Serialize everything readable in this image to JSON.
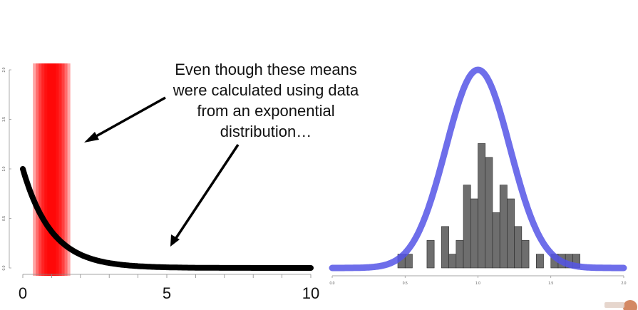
{
  "caption": {
    "lines": [
      "Even though these means",
      "were calculated using data",
      "from an exponential",
      "distribution…"
    ]
  },
  "chart_data": [
    {
      "type": "line",
      "title": "",
      "xlabel": "",
      "ylabel": "",
      "xlim": [
        0,
        10
      ],
      "ylim": [
        0,
        2.0
      ],
      "x_ticks": [
        "0",
        "5",
        "10"
      ],
      "y_ticks": [
        "0.0",
        "0.5",
        "1.0",
        "1.5",
        "2.0"
      ],
      "curve": {
        "function": "exponential density, rate 1",
        "x_range": [
          0,
          10
        ],
        "color": "#000000"
      },
      "highlight_bands": [
        {
          "from": 0.35,
          "to": 1.65,
          "opacity": 0.35
        },
        {
          "from": 0.45,
          "to": 1.55,
          "opacity": 0.35
        },
        {
          "from": 0.55,
          "to": 1.45,
          "opacity": 0.4
        },
        {
          "from": 0.65,
          "to": 1.35,
          "opacity": 0.45
        },
        {
          "from": 0.75,
          "to": 1.25,
          "opacity": 0.5
        },
        {
          "from": 0.85,
          "to": 1.15,
          "opacity": 0.5
        }
      ],
      "highlight_color": "#ff0000"
    },
    {
      "type": "bar",
      "title": "",
      "xlabel": "",
      "ylabel": "",
      "xlim": [
        0.0,
        2.0
      ],
      "x_ticks": [
        "0.0",
        "0.5",
        "1.0",
        "1.5",
        "2.0"
      ],
      "bin_width": 0.05,
      "bins_start": [
        0.45,
        0.5,
        0.55,
        0.6,
        0.65,
        0.7,
        0.75,
        0.8,
        0.85,
        0.9,
        0.95,
        1.0,
        1.05,
        1.1,
        1.15,
        1.2,
        1.25,
        1.3,
        1.35,
        1.4,
        1.45,
        1.5,
        1.55,
        1.6,
        1.65
      ],
      "counts": [
        1,
        1,
        0,
        0,
        2,
        0,
        3,
        1,
        2,
        6,
        5,
        9,
        8,
        4,
        6,
        5,
        3,
        2,
        0,
        1,
        0,
        1,
        1,
        1,
        1
      ],
      "bar_color": "#6e6e6e",
      "normal_curve": {
        "mean": 1.0,
        "sd": 0.22,
        "color": "#5555e6"
      }
    }
  ]
}
